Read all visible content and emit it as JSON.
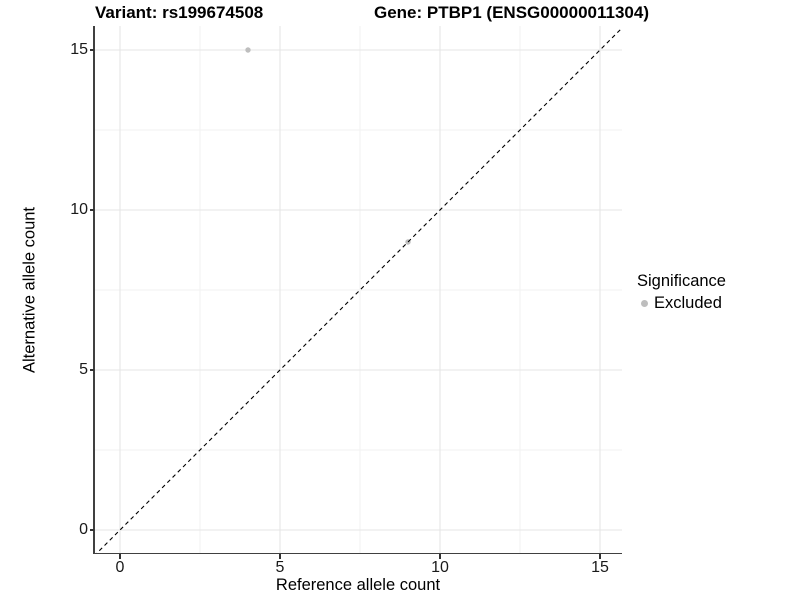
{
  "figure": {
    "title_left": "Variant: rs199674508",
    "title_right": "Gene: PTBP1 (ENSG00000011304)"
  },
  "chart_data": {
    "type": "scatter",
    "title": "Variant: rs199674508   Gene: PTBP1 (ENSG00000011304)",
    "xlabel": "Reference allele count",
    "ylabel": "Alternative allele count",
    "xlim": [
      -0.81,
      15.69
    ],
    "ylim": [
      -0.75,
      15.75
    ],
    "x_ticks": [
      0,
      5,
      10,
      15
    ],
    "y_ticks": [
      0,
      5,
      10,
      15
    ],
    "x_minor_ticks": [
      2.5,
      7.5,
      12.5
    ],
    "y_minor_ticks": [
      2.5,
      7.5,
      12.5
    ],
    "grid": true,
    "series": [
      {
        "name": "Excluded",
        "color": "#bebebe",
        "points": [
          {
            "x": 4,
            "y": 15
          },
          {
            "x": 9,
            "y": 9
          }
        ]
      }
    ],
    "reference_line": {
      "type": "abline",
      "slope": 1,
      "intercept": 0,
      "style": "dashed",
      "color": "#000000"
    },
    "legend": {
      "title": "Significance",
      "position": "right",
      "items": [
        {
          "label": "Excluded",
          "color": "#bebebe"
        }
      ]
    }
  },
  "colors": {
    "background": "#ffffff",
    "axis_line": "#404040",
    "tick_mark": "#333333",
    "tick_label": "#1a1a1a",
    "grid_major": "#e5e5e5",
    "grid_minor": "#f2f2f2",
    "point": "#bebebe",
    "reference_line": "#000000"
  }
}
